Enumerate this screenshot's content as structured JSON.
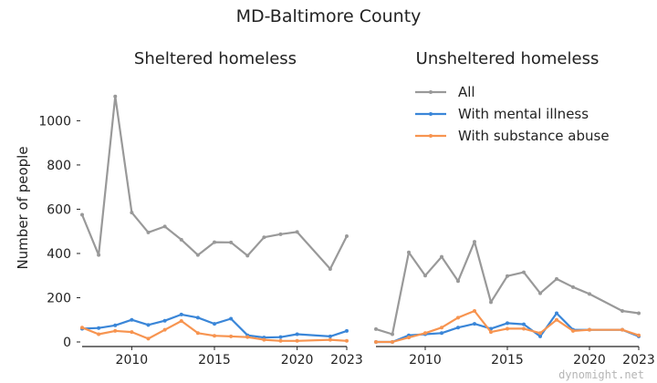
{
  "figure_title": "MD-Baltimore County",
  "watermark": "dynomight.net",
  "colors": {
    "all": "#999999",
    "mental": "#3a86d8",
    "substance": "#f79450"
  },
  "chart_data": [
    {
      "type": "line",
      "title": "Sheltered homeless",
      "ylabel": "Number of people",
      "xlabel": "",
      "xlim": [
        2007,
        2023
      ],
      "ylim": [
        0,
        1150
      ],
      "xticks": [
        2010,
        2015,
        2020,
        2023
      ],
      "yticks": [
        0,
        200,
        400,
        600,
        800,
        1000
      ],
      "grid": false,
      "legend": null,
      "x": [
        2007,
        2008,
        2009,
        2010,
        2011,
        2012,
        2013,
        2014,
        2015,
        2016,
        2017,
        2018,
        2019,
        2020,
        2022,
        2023
      ],
      "series": [
        {
          "name": "All",
          "color_key": "all",
          "values": [
            575,
            393,
            1110,
            585,
            495,
            522,
            462,
            393,
            451,
            450,
            390,
            473,
            487,
            497,
            330,
            478
          ]
        },
        {
          "name": "With mental illness",
          "color_key": "mental",
          "values": [
            60,
            63,
            75,
            100,
            77,
            96,
            124,
            110,
            82,
            105,
            30,
            20,
            22,
            35,
            25,
            50
          ]
        },
        {
          "name": "With substance abuse",
          "color_key": "substance",
          "values": [
            65,
            35,
            50,
            45,
            15,
            55,
            95,
            40,
            28,
            25,
            22,
            10,
            5,
            5,
            10,
            5
          ]
        }
      ]
    },
    {
      "type": "line",
      "title": "Unsheltered homeless",
      "ylabel": "",
      "xlabel": "",
      "xlim": [
        2007,
        2023
      ],
      "ylim": [
        0,
        1150
      ],
      "xticks": [
        2010,
        2015,
        2020,
        2023
      ],
      "yticks": [],
      "grid": false,
      "legend": "top-right",
      "x": [
        2007,
        2008,
        2009,
        2010,
        2011,
        2012,
        2013,
        2014,
        2015,
        2016,
        2017,
        2018,
        2019,
        2020,
        2022,
        2023
      ],
      "series": [
        {
          "name": "All",
          "color_key": "all",
          "values": [
            58,
            35,
            405,
            300,
            385,
            275,
            453,
            180,
            298,
            315,
            220,
            285,
            248,
            217,
            140,
            130
          ]
        },
        {
          "name": "With mental illness",
          "color_key": "mental",
          "values": [
            0,
            0,
            30,
            35,
            40,
            65,
            82,
            60,
            85,
            80,
            25,
            130,
            55,
            55,
            55,
            25
          ]
        },
        {
          "name": "With substance abuse",
          "color_key": "substance",
          "values": [
            0,
            0,
            20,
            40,
            65,
            110,
            140,
            45,
            60,
            60,
            40,
            100,
            50,
            55,
            55,
            30
          ]
        }
      ]
    }
  ]
}
